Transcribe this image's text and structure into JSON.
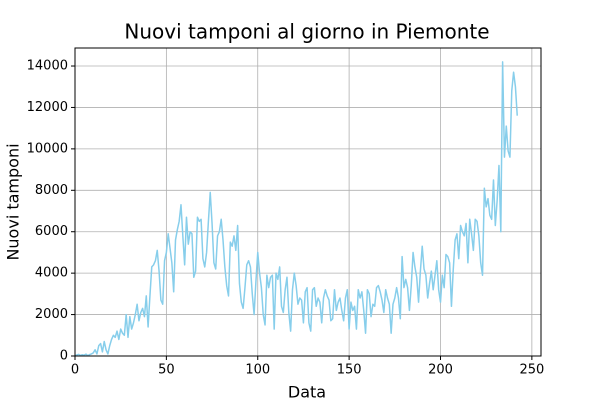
{
  "chart_data": {
    "type": "line",
    "title": "Nuovi tamponi al giorno in Piemonte",
    "xlabel": "Data",
    "ylabel": "Nuovi tamponi",
    "xlim": [
      0,
      255
    ],
    "ylim": [
      0,
      14870
    ],
    "xticks": [
      0,
      50,
      100,
      150,
      200,
      250
    ],
    "yticks": [
      0,
      2000,
      4000,
      6000,
      8000,
      10000,
      12000,
      14000
    ],
    "grid": true,
    "series": [
      {
        "color": "#87ceeb",
        "x": [
          0,
          1,
          2,
          3,
          4,
          5,
          6,
          7,
          8,
          9,
          10,
          11,
          12,
          13,
          14,
          15,
          16,
          17,
          18,
          19,
          20,
          21,
          22,
          23,
          24,
          25,
          26,
          27,
          28,
          29,
          30,
          31,
          32,
          33,
          34,
          35,
          36,
          37,
          38,
          39,
          40,
          41,
          42,
          43,
          44,
          45,
          46,
          47,
          48,
          49,
          50,
          51,
          52,
          53,
          54,
          55,
          56,
          57,
          58,
          59,
          60,
          61,
          62,
          63,
          64,
          65,
          66,
          67,
          68,
          69,
          70,
          71,
          72,
          73,
          74,
          75,
          76,
          77,
          78,
          79,
          80,
          81,
          82,
          83,
          84,
          85,
          86,
          87,
          88,
          89,
          90,
          91,
          92,
          93,
          94,
          95,
          96,
          97,
          98,
          99,
          100,
          101,
          102,
          103,
          104,
          105,
          106,
          107,
          108,
          109,
          110,
          111,
          112,
          113,
          114,
          115,
          116,
          117,
          118,
          119,
          120,
          121,
          122,
          123,
          124,
          125,
          126,
          127,
          128,
          129,
          130,
          131,
          132,
          133,
          134,
          135,
          136,
          137,
          138,
          139,
          140,
          141,
          142,
          143,
          144,
          145,
          146,
          147,
          148,
          149,
          150,
          151,
          152,
          153,
          154,
          155,
          156,
          157,
          158,
          159,
          160,
          161,
          162,
          163,
          164,
          165,
          166,
          167,
          168,
          169,
          170,
          171,
          172,
          173,
          174,
          175,
          176,
          177,
          178,
          179,
          180,
          181,
          182,
          183,
          184,
          185,
          186,
          187,
          188,
          189,
          190,
          191,
          192,
          193,
          194,
          195,
          196,
          197,
          198,
          199,
          200,
          201,
          202,
          203,
          204,
          205,
          206,
          207,
          208,
          209,
          210,
          211,
          212,
          213,
          214,
          215,
          216,
          217,
          218,
          219,
          220,
          221,
          222,
          223,
          224,
          225,
          226,
          227,
          228,
          229,
          230,
          231,
          232,
          233,
          234,
          235,
          236,
          237,
          238,
          239,
          240,
          241,
          242
        ],
        "values": [
          0,
          50,
          80,
          30,
          60,
          40,
          90,
          20,
          70,
          100,
          150,
          300,
          100,
          500,
          600,
          200,
          700,
          300,
          100,
          500,
          800,
          1000,
          900,
          1200,
          800,
          1300,
          1100,
          1000,
          2000,
          900,
          1900,
          1300,
          1600,
          2000,
          2500,
          1700,
          2100,
          2300,
          1900,
          2900,
          1400,
          2900,
          4300,
          4400,
          4600,
          5100,
          4100,
          2700,
          2500,
          4600,
          5000,
          5900,
          5200,
          4500,
          3100,
          5600,
          6100,
          6500,
          7300,
          5800,
          4400,
          6700,
          5400,
          6000,
          5900,
          3800,
          4100,
          6700,
          6500,
          6600,
          4700,
          4300,
          5000,
          6500,
          7900,
          6400,
          4500,
          4200,
          5800,
          6000,
          6600,
          5600,
          4300,
          3400,
          2900,
          5500,
          5300,
          5800,
          5100,
          6300,
          3500,
          2600,
          2300,
          3300,
          4400,
          4600,
          4300,
          3000,
          2000,
          3600,
          5000,
          4000,
          3300,
          2000,
          1500,
          3900,
          3300,
          3800,
          3900,
          1300,
          4000,
          3700,
          4300,
          2400,
          2100,
          3200,
          3800,
          2100,
          1200,
          3200,
          4000,
          3400,
          2500,
          2800,
          2700,
          1600,
          3100,
          3300,
          1600,
          1200,
          3200,
          3300,
          2400,
          2800,
          2600,
          1600,
          2800,
          3200,
          2900,
          2700,
          1700,
          1800,
          3200,
          2200,
          2600,
          2800,
          2200,
          1700,
          2800,
          3200,
          1300,
          2600,
          2200,
          2400,
          1300,
          3200,
          2800,
          3100,
          2200,
          1100,
          3200,
          3000,
          1900,
          2500,
          2400,
          3300,
          3400,
          3100,
          2700,
          2100,
          3200,
          2800,
          2500,
          1100,
          2500,
          2800,
          3300,
          2800,
          1800,
          4800,
          3300,
          3700,
          3300,
          2200,
          3400,
          5000,
          4300,
          3800,
          2600,
          4100,
          5300,
          4200,
          3900,
          2800,
          3500,
          4100,
          3200,
          3900,
          4600,
          3200,
          2600,
          3900,
          3300,
          4900,
          4800,
          4500,
          2400,
          4200,
          5600,
          5900,
          4700,
          6300,
          6000,
          5800,
          6400,
          4500,
          6600,
          5900,
          5100,
          6600,
          6500,
          5800,
          4500,
          3900,
          8100,
          7200,
          7600,
          6800,
          6600,
          8500,
          6300,
          7500,
          9200,
          6000,
          14200,
          9600,
          11100,
          9900,
          9600,
          12800,
          13700,
          13000,
          11600
        ]
      }
    ]
  }
}
